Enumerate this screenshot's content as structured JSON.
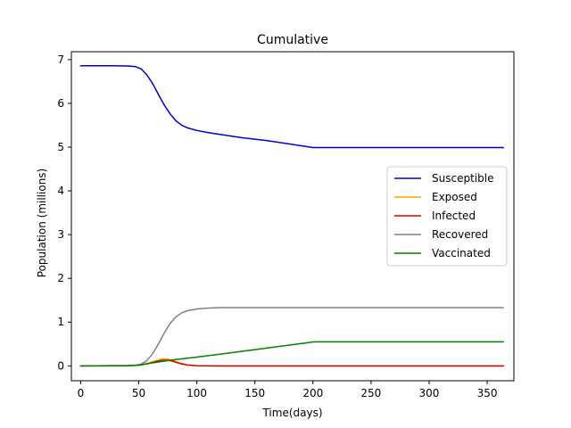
{
  "chart_data": {
    "type": "line",
    "title": "Cumulative",
    "xlabel": "Time(days)",
    "ylabel": "Population (millions)",
    "xlim": [
      -8,
      373
    ],
    "ylim": [
      -0.34,
      7.18
    ],
    "xticks": [
      0,
      50,
      100,
      150,
      200,
      250,
      300,
      350
    ],
    "yticks": [
      0,
      1,
      2,
      3,
      4,
      5,
      6,
      7
    ],
    "grid": false,
    "legend_position": "center-right",
    "series": [
      {
        "name": "Susceptible",
        "color": "#0000cc",
        "points": [
          [
            0,
            6.86
          ],
          [
            20,
            6.86
          ],
          [
            40,
            6.855
          ],
          [
            47,
            6.84
          ],
          [
            52,
            6.79
          ],
          [
            57,
            6.65
          ],
          [
            62,
            6.45
          ],
          [
            67,
            6.2
          ],
          [
            72,
            5.96
          ],
          [
            77,
            5.76
          ],
          [
            82,
            5.6
          ],
          [
            87,
            5.5
          ],
          [
            92,
            5.44
          ],
          [
            100,
            5.38
          ],
          [
            110,
            5.33
          ],
          [
            120,
            5.29
          ],
          [
            140,
            5.21
          ],
          [
            160,
            5.15
          ],
          [
            180,
            5.07
          ],
          [
            200,
            4.99
          ],
          [
            250,
            4.99
          ],
          [
            300,
            4.99
          ],
          [
            364,
            4.99
          ]
        ]
      },
      {
        "name": "Exposed",
        "color": "#ffa500",
        "points": [
          [
            0,
            0
          ],
          [
            40,
            0.005
          ],
          [
            50,
            0.02
          ],
          [
            58,
            0.06
          ],
          [
            65,
            0.12
          ],
          [
            70,
            0.16
          ],
          [
            75,
            0.16
          ],
          [
            80,
            0.12
          ],
          [
            86,
            0.06
          ],
          [
            92,
            0.02
          ],
          [
            100,
            0.005
          ],
          [
            120,
            0
          ],
          [
            364,
            0
          ]
        ]
      },
      {
        "name": "Infected",
        "color": "#dd0000",
        "points": [
          [
            0,
            0
          ],
          [
            40,
            0.005
          ],
          [
            50,
            0.015
          ],
          [
            58,
            0.05
          ],
          [
            65,
            0.1
          ],
          [
            70,
            0.13
          ],
          [
            75,
            0.13
          ],
          [
            80,
            0.1
          ],
          [
            86,
            0.05
          ],
          [
            92,
            0.02
          ],
          [
            100,
            0.005
          ],
          [
            120,
            0
          ],
          [
            364,
            0
          ]
        ]
      },
      {
        "name": "Recovered",
        "color": "#808080",
        "points": [
          [
            0,
            0
          ],
          [
            40,
            0
          ],
          [
            47,
            0.01
          ],
          [
            52,
            0.04
          ],
          [
            57,
            0.12
          ],
          [
            62,
            0.28
          ],
          [
            67,
            0.5
          ],
          [
            72,
            0.75
          ],
          [
            77,
            0.97
          ],
          [
            82,
            1.12
          ],
          [
            87,
            1.21
          ],
          [
            92,
            1.26
          ],
          [
            100,
            1.3
          ],
          [
            110,
            1.32
          ],
          [
            120,
            1.33
          ],
          [
            200,
            1.33
          ],
          [
            364,
            1.33
          ]
        ]
      },
      {
        "name": "Vaccinated",
        "color": "#008000",
        "points": [
          [
            0,
            0
          ],
          [
            40,
            0.005
          ],
          [
            50,
            0.02
          ],
          [
            60,
            0.06
          ],
          [
            70,
            0.1
          ],
          [
            80,
            0.14
          ],
          [
            100,
            0.2
          ],
          [
            150,
            0.37
          ],
          [
            201,
            0.55
          ],
          [
            250,
            0.55
          ],
          [
            364,
            0.55
          ]
        ]
      }
    ]
  }
}
